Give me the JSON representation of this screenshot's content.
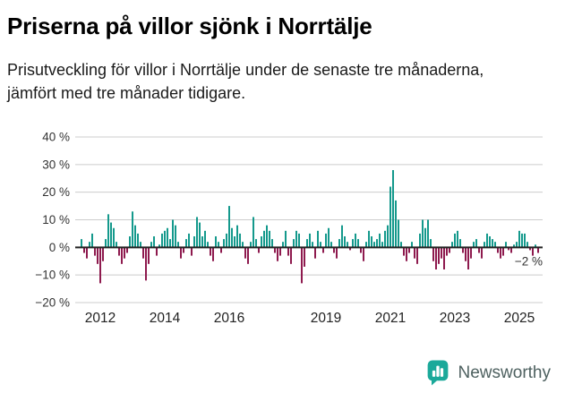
{
  "title": "Priserna på villor sjönk i Norrtälje",
  "subtitle": "Prisutveckling för villor i Norrtälje under de senaste tre månaderna, jämfört med tre månader tidigare.",
  "footer": {
    "brand": "Newsworthy"
  },
  "chart_data": {
    "type": "bar",
    "title": "Priserna på villor sjönk i Norrtälje",
    "frequency": "monthly",
    "start": {
      "year": 2011,
      "month": 6
    },
    "unit": "%",
    "ylim": [
      -20,
      40
    ],
    "grid": true,
    "values": [
      3,
      -2,
      -4,
      2,
      5,
      -3,
      -6,
      -13,
      -5,
      3,
      12,
      9,
      7,
      2,
      -3,
      -6,
      -4,
      -2,
      4,
      13,
      8,
      5,
      2,
      -4,
      -12,
      -6,
      2,
      4,
      -3,
      1,
      5,
      6,
      7,
      3,
      10,
      8,
      2,
      -4,
      -2,
      3,
      5,
      -3,
      4,
      11,
      9,
      4,
      6,
      2,
      -3,
      -5,
      4,
      2,
      -2,
      3,
      5,
      15,
      7,
      4,
      8,
      5,
      2,
      -4,
      -6,
      2,
      11,
      3,
      -2,
      4,
      6,
      8,
      6,
      3,
      -2,
      -5,
      -3,
      2,
      6,
      -3,
      -6,
      3,
      6,
      5,
      -13,
      -7,
      3,
      5,
      2,
      -4,
      6,
      2,
      -2,
      5,
      7,
      2,
      -2,
      -4,
      3,
      8,
      4,
      2,
      -1,
      3,
      5,
      3,
      -2,
      -5,
      2,
      6,
      4,
      2,
      3,
      5,
      2,
      6,
      8,
      22,
      28,
      17,
      10,
      2,
      -3,
      -5,
      -2,
      2,
      -4,
      -6,
      5,
      10,
      7,
      10,
      3,
      -5,
      -8,
      -6,
      -4,
      -8,
      -3,
      -2,
      2,
      5,
      6,
      3,
      -2,
      -5,
      -8,
      -4,
      2,
      3,
      -2,
      -4,
      2,
      5,
      4,
      3,
      2,
      -2,
      -4,
      -3,
      2,
      -1,
      -2,
      1,
      2,
      6,
      5,
      5,
      2,
      -1,
      -3,
      1,
      -2
    ],
    "y_ticks": [
      {
        "value": 40,
        "label": "40 %"
      },
      {
        "value": 30,
        "label": "30 %"
      },
      {
        "value": 20,
        "label": "20 %"
      },
      {
        "value": 10,
        "label": "10 %"
      },
      {
        "value": 0,
        "label": "0 %"
      },
      {
        "value": -10,
        "label": "−10 %"
      },
      {
        "value": -20,
        "label": "−20 %"
      }
    ],
    "x_tick_years": [
      2012,
      2014,
      2016,
      2019,
      2021,
      2023,
      2025
    ],
    "annotation": {
      "label": "−2 %",
      "value": -2
    },
    "colors": {
      "positive": "#14998c",
      "negative": "#8e1a4e",
      "grid": "#cccccc",
      "zero_line": "#222222",
      "axis_text": "#333333",
      "x_label_text": "#222222",
      "brand_teal": "#1ba99a"
    }
  }
}
